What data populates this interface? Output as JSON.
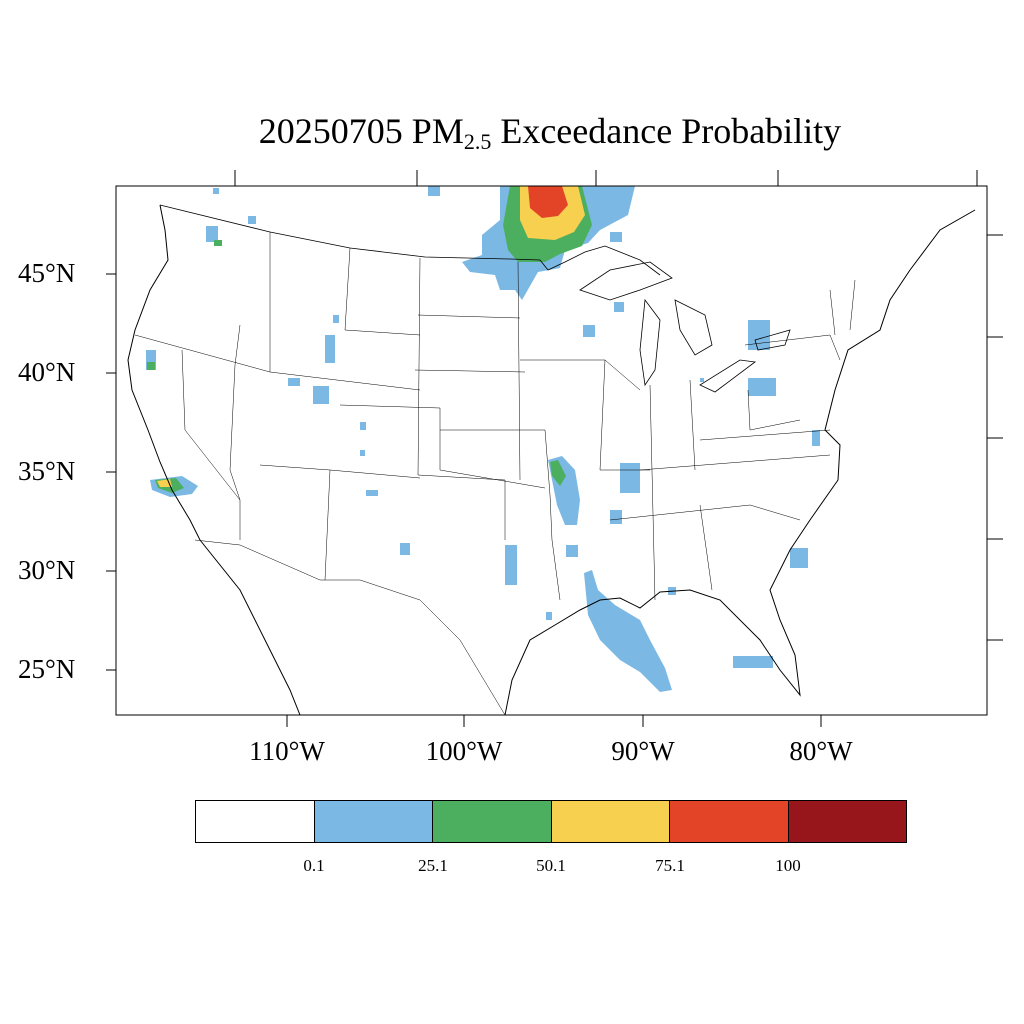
{
  "title": {
    "prefix": "20250705 PM",
    "subscript": "2.5",
    "suffix": " Exceedance Probability"
  },
  "axes": {
    "y_labels": [
      "45°N",
      "40°N",
      "35°N",
      "30°N",
      "25°N"
    ],
    "x_labels": [
      "110°W",
      "100°W",
      "90°W",
      "80°W"
    ]
  },
  "legend": {
    "colors": [
      "#ffffff",
      "#7cb8e4",
      "#4caf60",
      "#f7d050",
      "#e34427",
      "#96161c"
    ],
    "levels": [
      "0.1",
      "25.1",
      "50.1",
      "75.1",
      "100"
    ]
  },
  "colors": {
    "light_blue": "#7cb8e4",
    "green": "#4caf60",
    "yellow": "#f7d050",
    "red": "#e34427",
    "dark_red": "#96161c"
  }
}
